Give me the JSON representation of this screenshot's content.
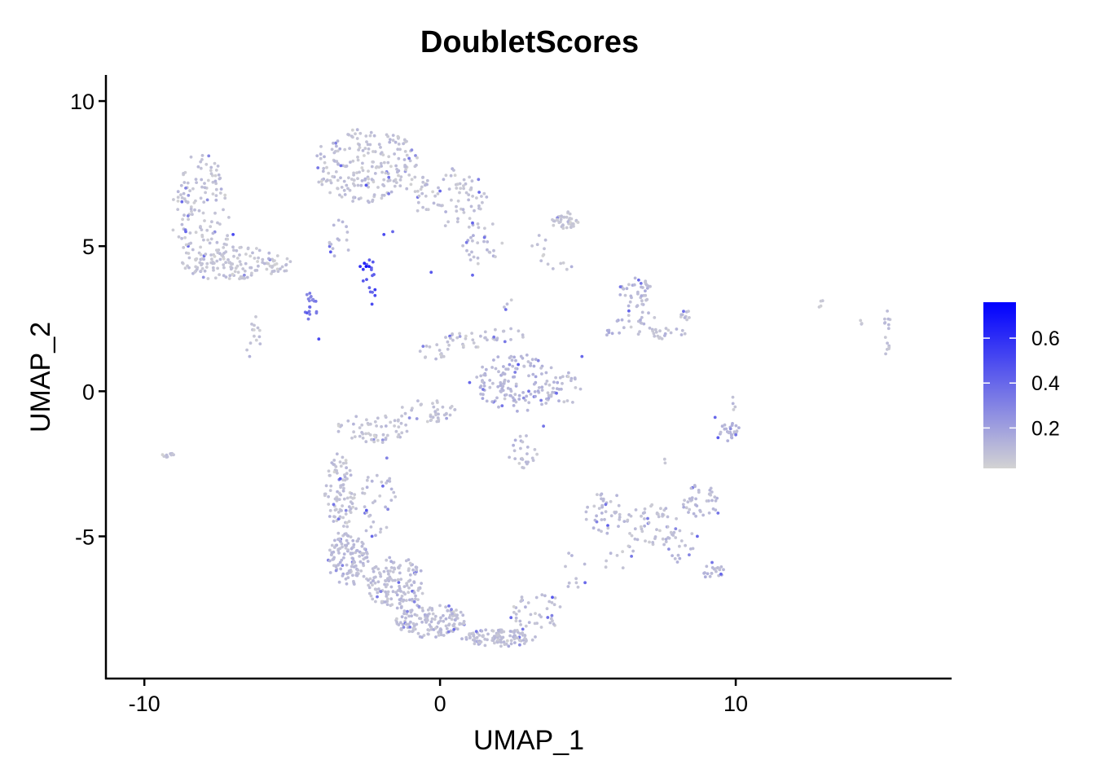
{
  "chart_data": {
    "type": "scatter",
    "title": "DoubletScores",
    "xlabel": "UMAP_1",
    "ylabel": "UMAP_2",
    "xlim": [
      -11.3,
      17.3
    ],
    "ylim": [
      -9.9,
      10.9
    ],
    "x_ticks": [
      -10,
      0,
      10
    ],
    "x_tick_labels": [
      "-10",
      "0",
      "10"
    ],
    "y_ticks": [
      -5,
      0,
      5,
      10
    ],
    "y_tick_labels": [
      "-5",
      "0",
      "5",
      "10"
    ],
    "grid": false,
    "legend_position": "right",
    "color_scale": {
      "low": "#d3d3d3",
      "high": "#0000ff",
      "min": 0.02,
      "max": 0.76,
      "breaks": [
        0.2,
        0.4,
        0.6
      ],
      "break_labels": [
        "0.2",
        "0.4",
        "0.6"
      ]
    },
    "clusters": [
      {
        "cx": -8.1,
        "cy": 6.0,
        "rx": 1.0,
        "ry": 2.2,
        "n": 150,
        "score": 0.07
      },
      {
        "cx": -6.8,
        "cy": 4.4,
        "rx": 1.5,
        "ry": 0.6,
        "n": 110,
        "score": 0.07
      },
      {
        "cx": -5.5,
        "cy": 4.4,
        "rx": 0.6,
        "ry": 0.3,
        "n": 15,
        "score": 0.08
      },
      {
        "cx": -6.3,
        "cy": 1.8,
        "rx": 0.25,
        "ry": 1.0,
        "n": 14,
        "score": 0.07
      },
      {
        "cx": -4.4,
        "cy": 2.9,
        "rx": 0.25,
        "ry": 0.5,
        "n": 16,
        "score": 0.32
      },
      {
        "cx": -9.2,
        "cy": -2.2,
        "rx": 0.2,
        "ry": 0.12,
        "n": 10,
        "score": 0.08
      },
      {
        "cx": -2.5,
        "cy": 7.8,
        "rx": 1.8,
        "ry": 1.3,
        "n": 220,
        "score": 0.08
      },
      {
        "cx": 0.3,
        "cy": 6.7,
        "rx": 1.3,
        "ry": 1.0,
        "n": 80,
        "score": 0.08
      },
      {
        "cx": 1.4,
        "cy": 5.1,
        "rx": 0.7,
        "ry": 0.8,
        "n": 30,
        "score": 0.09
      },
      {
        "cx": -2.4,
        "cy": 4.0,
        "rx": 0.2,
        "ry": 0.8,
        "n": 12,
        "score": 0.42
      },
      {
        "cx": -3.4,
        "cy": 5.2,
        "rx": 0.4,
        "ry": 0.7,
        "n": 15,
        "score": 0.09
      },
      {
        "cx": 4.2,
        "cy": 5.9,
        "rx": 0.5,
        "ry": 0.3,
        "n": 40,
        "score": 0.06
      },
      {
        "cx": 3.4,
        "cy": 4.9,
        "rx": 0.3,
        "ry": 0.5,
        "n": 8,
        "score": 0.08
      },
      {
        "cx": 4.0,
        "cy": 4.3,
        "rx": 0.5,
        "ry": 0.2,
        "n": 6,
        "score": 0.08
      },
      {
        "cx": 6.6,
        "cy": 3.4,
        "rx": 0.6,
        "ry": 0.5,
        "n": 40,
        "score": 0.1
      },
      {
        "cx": 6.6,
        "cy": 2.4,
        "rx": 0.7,
        "ry": 0.5,
        "n": 20,
        "score": 0.1
      },
      {
        "cx": 7.6,
        "cy": 2.0,
        "rx": 0.7,
        "ry": 0.2,
        "n": 20,
        "score": 0.08
      },
      {
        "cx": 8.3,
        "cy": 2.6,
        "rx": 0.2,
        "ry": 0.2,
        "n": 10,
        "score": 0.08
      },
      {
        "cx": 5.8,
        "cy": 2.0,
        "rx": 0.3,
        "ry": 0.2,
        "n": 6,
        "score": 0.14
      },
      {
        "cx": 12.9,
        "cy": 3.0,
        "rx": 0.1,
        "ry": 0.15,
        "n": 4,
        "score": 0.07
      },
      {
        "cx": 14.3,
        "cy": 2.4,
        "rx": 0.1,
        "ry": 0.1,
        "n": 3,
        "score": 0.07
      },
      {
        "cx": 15.1,
        "cy": 2.0,
        "rx": 0.15,
        "ry": 0.8,
        "n": 15,
        "score": 0.08
      },
      {
        "cx": 1.0,
        "cy": 1.8,
        "rx": 1.0,
        "ry": 0.3,
        "n": 30,
        "score": 0.08
      },
      {
        "cx": -0.2,
        "cy": 1.4,
        "rx": 0.5,
        "ry": 0.3,
        "n": 15,
        "score": 0.07
      },
      {
        "cx": 2.3,
        "cy": 2.0,
        "rx": 0.6,
        "ry": 0.3,
        "n": 10,
        "score": 0.08
      },
      {
        "cx": 2.6,
        "cy": 0.3,
        "rx": 1.4,
        "ry": 1.0,
        "n": 130,
        "score": 0.12
      },
      {
        "cx": 4.1,
        "cy": 0.1,
        "rx": 0.7,
        "ry": 0.6,
        "n": 30,
        "score": 0.1
      },
      {
        "cx": 2.8,
        "cy": -2.1,
        "rx": 0.5,
        "ry": 0.6,
        "n": 25,
        "score": 0.09
      },
      {
        "cx": 2.3,
        "cy": 3.0,
        "rx": 0.2,
        "ry": 0.2,
        "n": 4,
        "score": 0.08
      },
      {
        "cx": 9.8,
        "cy": -1.4,
        "rx": 0.35,
        "ry": 0.35,
        "n": 25,
        "score": 0.12
      },
      {
        "cx": 9.9,
        "cy": -0.5,
        "rx": 0.15,
        "ry": 0.3,
        "n": 4,
        "score": 0.08
      },
      {
        "cx": -3.4,
        "cy": -3.5,
        "rx": 0.5,
        "ry": 1.4,
        "n": 90,
        "score": 0.08
      },
      {
        "cx": -2.3,
        "cy": -1.3,
        "rx": 1.2,
        "ry": 0.5,
        "n": 60,
        "score": 0.08
      },
      {
        "cx": -0.4,
        "cy": -0.7,
        "rx": 1.0,
        "ry": 0.4,
        "n": 40,
        "score": 0.07
      },
      {
        "cx": -3.1,
        "cy": -5.8,
        "rx": 0.7,
        "ry": 0.9,
        "n": 120,
        "score": 0.1
      },
      {
        "cx": -1.5,
        "cy": -6.6,
        "rx": 1.0,
        "ry": 0.9,
        "n": 150,
        "score": 0.09
      },
      {
        "cx": -0.3,
        "cy": -7.9,
        "rx": 1.2,
        "ry": 0.6,
        "n": 140,
        "score": 0.09
      },
      {
        "cx": 2.0,
        "cy": -8.5,
        "rx": 1.3,
        "ry": 0.3,
        "n": 110,
        "score": 0.09
      },
      {
        "cx": 3.3,
        "cy": -7.6,
        "rx": 1.0,
        "ry": 0.6,
        "n": 40,
        "score": 0.08
      },
      {
        "cx": -2.3,
        "cy": -3.8,
        "rx": 0.8,
        "ry": 1.2,
        "n": 40,
        "score": 0.09
      },
      {
        "cx": 5.6,
        "cy": -4.2,
        "rx": 0.8,
        "ry": 0.7,
        "n": 40,
        "score": 0.1
      },
      {
        "cx": 7.2,
        "cy": -4.6,
        "rx": 0.9,
        "ry": 0.7,
        "n": 50,
        "score": 0.08
      },
      {
        "cx": 8.8,
        "cy": -3.8,
        "rx": 0.6,
        "ry": 0.6,
        "n": 40,
        "score": 0.1
      },
      {
        "cx": 9.2,
        "cy": -6.2,
        "rx": 0.4,
        "ry": 0.25,
        "n": 20,
        "score": 0.12
      },
      {
        "cx": 8.1,
        "cy": -5.3,
        "rx": 0.6,
        "ry": 0.6,
        "n": 20,
        "score": 0.1
      },
      {
        "cx": 6.0,
        "cy": -5.7,
        "rx": 0.6,
        "ry": 0.5,
        "n": 10,
        "score": 0.08
      },
      {
        "cx": 4.6,
        "cy": -6.2,
        "rx": 0.4,
        "ry": 0.8,
        "n": 10,
        "score": 0.08
      },
      {
        "cx": 7.6,
        "cy": -2.4,
        "rx": 0.1,
        "ry": 0.1,
        "n": 2,
        "score": 0.07
      }
    ],
    "notable_points": [
      {
        "x": -2.5,
        "y": 4.3,
        "score": 0.7
      },
      {
        "x": -2.4,
        "y": 4.3,
        "score": 0.65
      },
      {
        "x": -2.7,
        "y": 4.3,
        "score": 0.6
      },
      {
        "x": -2.6,
        "y": 4.2,
        "score": 0.55
      },
      {
        "x": -2.2,
        "y": 3.5,
        "score": 0.55
      },
      {
        "x": -2.3,
        "y": 3.0,
        "score": 0.5
      },
      {
        "x": -2.2,
        "y": 3.3,
        "score": 0.5
      },
      {
        "x": -2.6,
        "y": 3.8,
        "score": 0.45
      },
      {
        "x": -3.7,
        "y": 4.8,
        "score": 0.45
      },
      {
        "x": -1.9,
        "y": 5.4,
        "score": 0.5
      },
      {
        "x": -1.6,
        "y": 5.5,
        "score": 0.4
      },
      {
        "x": -4.5,
        "y": 2.7,
        "score": 0.45
      },
      {
        "x": -4.1,
        "y": 1.8,
        "score": 0.5
      },
      {
        "x": -4.4,
        "y": 2.9,
        "score": 0.4
      },
      {
        "x": -4.2,
        "y": 3.1,
        "score": 0.35
      },
      {
        "x": -7.0,
        "y": 5.4,
        "score": 0.5
      },
      {
        "x": -8.6,
        "y": 5.5,
        "score": 0.4
      },
      {
        "x": -2.5,
        "y": 7.1,
        "score": 0.45
      },
      {
        "x": 0.0,
        "y": 6.9,
        "score": 0.4
      },
      {
        "x": -0.3,
        "y": 4.1,
        "score": 0.45
      },
      {
        "x": 1.1,
        "y": 5.8,
        "score": 0.4
      },
      {
        "x": 1.5,
        "y": 5.3,
        "score": 0.35
      },
      {
        "x": 1.1,
        "y": 4.0,
        "score": 0.4
      },
      {
        "x": -8.6,
        "y": 7.0,
        "score": 0.3
      },
      {
        "x": 9.4,
        "y": -1.6,
        "score": 0.45
      },
      {
        "x": 9.3,
        "y": -0.9,
        "score": 0.4
      },
      {
        "x": 10.0,
        "y": -1.5,
        "score": 0.35
      },
      {
        "x": 4.8,
        "y": 1.2,
        "score": 0.4
      },
      {
        "x": 1.0,
        "y": 0.3,
        "score": 0.4
      },
      {
        "x": 2.1,
        "y": -0.5,
        "score": 0.35
      },
      {
        "x": 3.5,
        "y": -1.2,
        "score": 0.35
      },
      {
        "x": 2.4,
        "y": -7.8,
        "score": 0.4
      },
      {
        "x": 2.8,
        "y": -8.2,
        "score": 0.35
      },
      {
        "x": 0.3,
        "y": -7.4,
        "score": 0.35
      },
      {
        "x": -2.3,
        "y": -5.0,
        "score": 0.4
      },
      {
        "x": -3.6,
        "y": -3.9,
        "score": 0.35
      },
      {
        "x": -3.3,
        "y": -6.0,
        "score": 0.3
      },
      {
        "x": -2.0,
        "y": -6.9,
        "score": 0.3
      },
      {
        "x": -1.8,
        "y": -2.3,
        "score": 0.3
      },
      {
        "x": 8.7,
        "y": -5.0,
        "score": 0.4
      },
      {
        "x": 9.5,
        "y": -6.3,
        "score": 0.4
      },
      {
        "x": 9.2,
        "y": -5.9,
        "score": 0.35
      },
      {
        "x": 9.4,
        "y": -4.2,
        "score": 0.35
      },
      {
        "x": 6.1,
        "y": 3.6,
        "score": 0.35
      },
      {
        "x": 5.6,
        "y": -3.9,
        "score": 0.35
      },
      {
        "x": 5.3,
        "y": -4.5,
        "score": 0.3
      },
      {
        "x": 3.0,
        "y": 0.0,
        "score": 0.35
      },
      {
        "x": 3.8,
        "y": -7.1,
        "score": 0.45
      }
    ]
  }
}
